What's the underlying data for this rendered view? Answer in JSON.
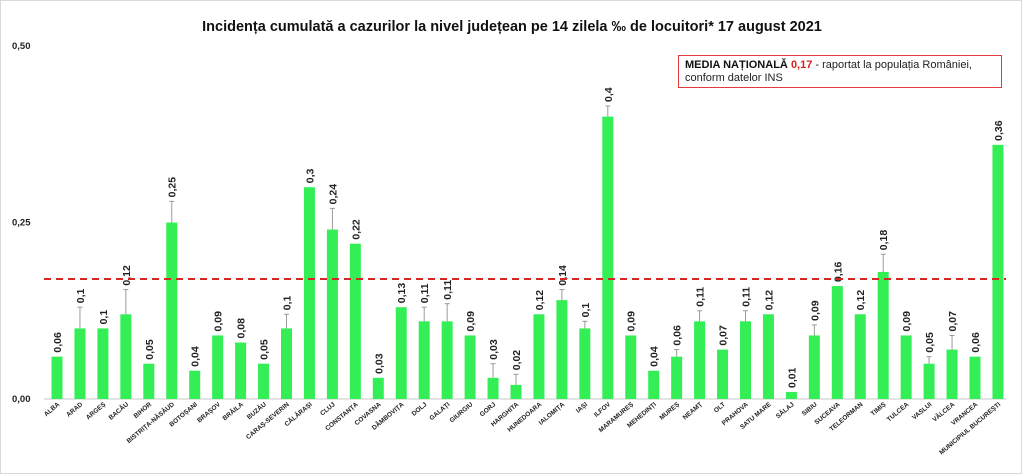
{
  "title": "Incidența cumulată a cazurilor la nivel județean pe 14 zilela ‰ de locuitori*  17 august 2021",
  "callout": {
    "label": "MEDIA NAȚIONALĂ",
    "value": "0,17",
    "text_line1": " - raportat la populația României,",
    "text_line2": "conform datelor INS"
  },
  "colors": {
    "bar": "#33ee55",
    "error_bar": "#9a9a9a",
    "national_line": "#d62626",
    "callout_border": "#e23a3a"
  },
  "chart_data": {
    "type": "bar",
    "title": "Incidența cumulată a cazurilor la nivel județean pe 14 zilela ‰ de locuitori*  17 august 2021",
    "xlabel": "",
    "ylabel": "",
    "ylim": [
      0,
      0.5
    ],
    "yticks": [
      0,
      0.25,
      0.5
    ],
    "ytick_labels": [
      "0,00",
      "0,25",
      "0,50"
    ],
    "grid": false,
    "reference_line": {
      "value": 0.17,
      "style": "dashed",
      "label": "MEDIA NAȚIONALĂ 0,17"
    },
    "categories": [
      "ALBA",
      "ARAD",
      "ARGEȘ",
      "BACĂU",
      "BIHOR",
      "BISTRIȚA-NĂSĂUD",
      "BOTOȘANI",
      "BRAȘOV",
      "BRĂILA",
      "BUZĂU",
      "CARAȘ-SEVERIN",
      "CĂLĂRAȘI",
      "CLUJ",
      "CONSTANȚA",
      "COVASNA",
      "DÂMBOVIȚA",
      "DOLJ",
      "GALAȚI",
      "GIURGIU",
      "GORJ",
      "HARGHITA",
      "HUNEDOARA",
      "IALOMIȚA",
      "IAȘI",
      "ILFOV",
      "MARAMUREȘ",
      "MEHEDINȚI",
      "MUREȘ",
      "NEAMȚ",
      "OLT",
      "PRAHOVA",
      "SATU MARE",
      "SĂLAJ",
      "SIBIU",
      "SUCEAVA",
      "TELEORMAN",
      "TIMIȘ",
      "TULCEA",
      "VASLUI",
      "VÂLCEA",
      "VRANCEA",
      "MUNICIPIUL BUCUREȘTI"
    ],
    "values": [
      0.06,
      0.1,
      0.1,
      0.12,
      0.05,
      0.25,
      0.04,
      0.09,
      0.08,
      0.05,
      0.1,
      0.3,
      0.24,
      0.22,
      0.03,
      0.13,
      0.11,
      0.11,
      0.09,
      0.03,
      0.02,
      0.12,
      0.14,
      0.1,
      0.4,
      0.09,
      0.04,
      0.06,
      0.11,
      0.07,
      0.11,
      0.12,
      0.01,
      0.09,
      0.16,
      0.12,
      0.18,
      0.09,
      0.05,
      0.07,
      0.06,
      0.36
    ],
    "value_labels": [
      "0,06",
      "0,1",
      "0,1",
      "0,12",
      "0,05",
      "0,25",
      "0,04",
      "0,09",
      "0,08",
      "0,05",
      "0,1",
      "0,3",
      "0,24",
      "0,22",
      "0,03",
      "0,13",
      "0,11",
      "0,11",
      "0,09",
      "0,03",
      "0,02",
      "0,12",
      "0,14",
      "0,1",
      "0,4",
      "0,09",
      "0,04",
      "0,06",
      "0,11",
      "0,07",
      "0,11",
      "0,12",
      "0,01",
      "0,09",
      "0,16",
      "0,12",
      "0,18",
      "0,09",
      "0,05",
      "0,07",
      "0,06",
      "0,36"
    ],
    "error_bar_tops": [
      0.06,
      0.13,
      0.1,
      0.155,
      0.05,
      0.28,
      0.04,
      0.09,
      0.08,
      0.05,
      0.12,
      0.3,
      0.27,
      0.22,
      0.03,
      0.13,
      0.13,
      0.135,
      0.09,
      0.05,
      0.035,
      0.12,
      0.155,
      0.11,
      0.415,
      0.09,
      0.04,
      0.07,
      0.125,
      0.07,
      0.125,
      0.12,
      0.01,
      0.105,
      0.16,
      0.12,
      0.205,
      0.09,
      0.06,
      0.09,
      0.06,
      0.36
    ]
  }
}
